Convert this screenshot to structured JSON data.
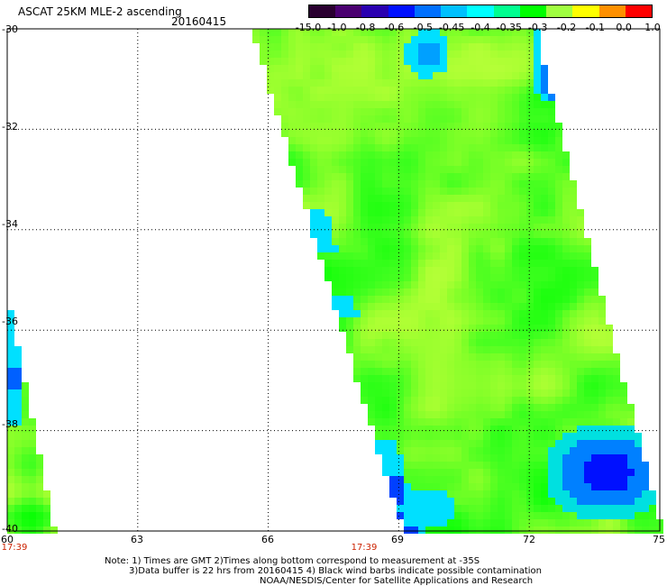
{
  "header": {
    "title": "ASCAT 25KM MLE-2 ascending",
    "date": "20160415"
  },
  "colorbar": {
    "labels": [
      "-15.0",
      "-1.0",
      "-0.8",
      "-0.6",
      "-0.5",
      "-0.45",
      "-0.4",
      "-0.35",
      "-0.3",
      "-0.2",
      "-0.1",
      "0.0",
      "1.0"
    ],
    "colors": [
      "#2a0030",
      "#4a0070",
      "#2a00b0",
      "#0010ff",
      "#0070ff",
      "#00c0ff",
      "#00ffff",
      "#00ff90",
      "#00ff00",
      "#a0ff40",
      "#ffff00",
      "#ff9000",
      "#ff0000"
    ]
  },
  "axes": {
    "lat_labels": [
      "-30",
      "-32",
      "-34",
      "-36",
      "-38",
      "-40"
    ],
    "lon_labels": [
      "60",
      "63",
      "66",
      "69",
      "72",
      "75"
    ],
    "time_labels": [
      "17:39",
      "17:39"
    ]
  },
  "notes": {
    "line1": "Note: 1) Times are GMT 2)Times along bottom correspond to measurement at -35S",
    "line2": "3)Data buffer is 22 hrs from 20160415 4) Black wind barbs indicate possible contamination",
    "line3": "NOAA/NESDIS/Center for Satellite Applications and Research"
  },
  "map": {
    "lat_range": [
      -40,
      -30
    ],
    "lon_range": [
      60,
      75
    ],
    "grid": true
  }
}
